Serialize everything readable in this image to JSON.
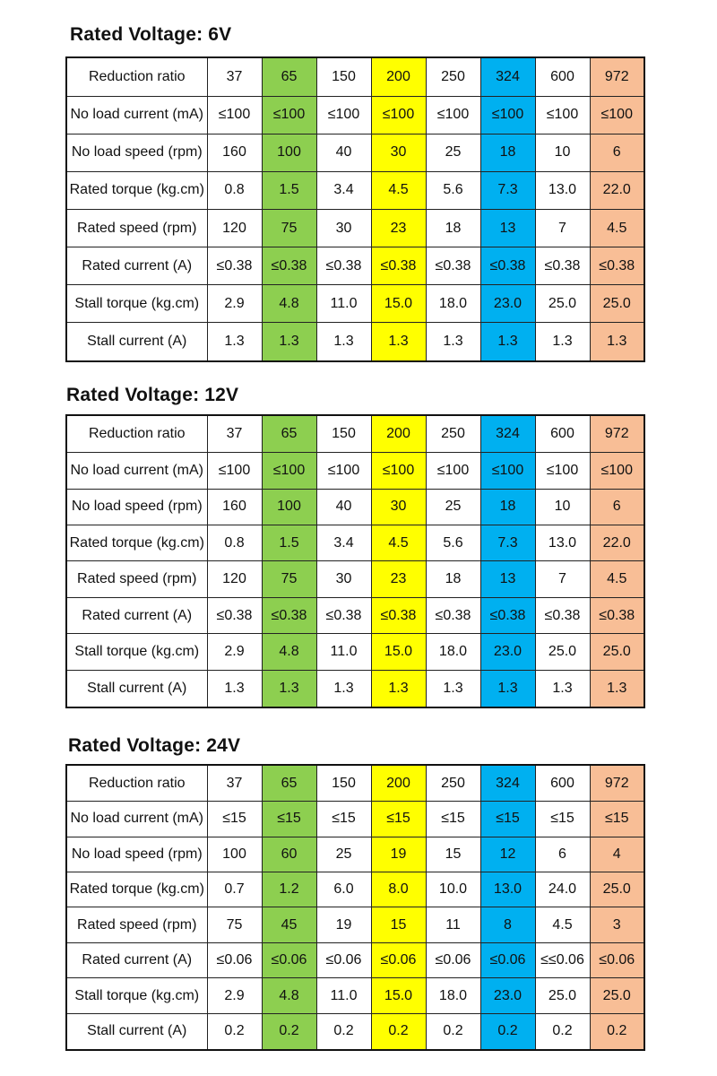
{
  "colors": {
    "green": "#8dcf50",
    "yellow": "#ffff00",
    "blue": "#00b0f0",
    "orange": "#f8be96"
  },
  "sections": [
    {
      "title": "Rated Voltage: 6V",
      "rows": [
        {
          "label": "Reduction ratio",
          "values": [
            "37",
            "65",
            "150",
            "200",
            "250",
            "324",
            "600",
            "972"
          ]
        },
        {
          "label": "No load current (mA)",
          "values": [
            "≤100",
            "≤100",
            "≤100",
            "≤100",
            "≤100",
            "≤100",
            "≤100",
            "≤100"
          ]
        },
        {
          "label": "No load speed (rpm)",
          "values": [
            "160",
            "100",
            "40",
            "30",
            "25",
            "18",
            "10",
            "6"
          ]
        },
        {
          "label": "Rated torque (kg.cm)",
          "values": [
            "0.8",
            "1.5",
            "3.4",
            "4.5",
            "5.6",
            "7.3",
            "13.0",
            "22.0"
          ]
        },
        {
          "label": "Rated speed (rpm)",
          "values": [
            "120",
            "75",
            "30",
            "23",
            "18",
            "13",
            "7",
            "4.5"
          ]
        },
        {
          "label": "Rated current (A)",
          "values": [
            "≤0.38",
            "≤0.38",
            "≤0.38",
            "≤0.38",
            "≤0.38",
            "≤0.38",
            "≤0.38",
            "≤0.38"
          ]
        },
        {
          "label": "Stall torque (kg.cm)",
          "values": [
            "2.9",
            "4.8",
            "11.0",
            "15.0",
            "18.0",
            "23.0",
            "25.0",
            "25.0"
          ]
        },
        {
          "label": "Stall current (A)",
          "values": [
            "1.3",
            "1.3",
            "1.3",
            "1.3",
            "1.3",
            "1.3",
            "1.3",
            "1.3"
          ]
        }
      ]
    },
    {
      "title": "Rated Voltage: 12V",
      "rows": [
        {
          "label": "Reduction ratio",
          "values": [
            "37",
            "65",
            "150",
            "200",
            "250",
            "324",
            "600",
            "972"
          ]
        },
        {
          "label": "No load current (mA)",
          "values": [
            "≤100",
            "≤100",
            "≤100",
            "≤100",
            "≤100",
            "≤100",
            "≤100",
            "≤100"
          ]
        },
        {
          "label": "No load speed (rpm)",
          "values": [
            "160",
            "100",
            "40",
            "30",
            "25",
            "18",
            "10",
            "6"
          ]
        },
        {
          "label": "Rated torque (kg.cm)",
          "values": [
            "0.8",
            "1.5",
            "3.4",
            "4.5",
            "5.6",
            "7.3",
            "13.0",
            "22.0"
          ]
        },
        {
          "label": "Rated speed (rpm)",
          "values": [
            "120",
            "75",
            "30",
            "23",
            "18",
            "13",
            "7",
            "4.5"
          ]
        },
        {
          "label": "Rated current (A)",
          "values": [
            "≤0.38",
            "≤0.38",
            "≤0.38",
            "≤0.38",
            "≤0.38",
            "≤0.38",
            "≤0.38",
            "≤0.38"
          ]
        },
        {
          "label": "Stall torque (kg.cm)",
          "values": [
            "2.9",
            "4.8",
            "11.0",
            "15.0",
            "18.0",
            "23.0",
            "25.0",
            "25.0"
          ]
        },
        {
          "label": "Stall current (A)",
          "values": [
            "1.3",
            "1.3",
            "1.3",
            "1.3",
            "1.3",
            "1.3",
            "1.3",
            "1.3"
          ]
        }
      ]
    },
    {
      "title": "Rated Voltage: 24V",
      "rows": [
        {
          "label": "Reduction ratio",
          "values": [
            "37",
            "65",
            "150",
            "200",
            "250",
            "324",
            "600",
            "972"
          ]
        },
        {
          "label": "No load current (mA)",
          "values": [
            "≤15",
            "≤15",
            "≤15",
            "≤15",
            "≤15",
            "≤15",
            "≤15",
            "≤15"
          ]
        },
        {
          "label": "No load speed (rpm)",
          "values": [
            "100",
            "60",
            "25",
            "19",
            "15",
            "12",
            "6",
            "4"
          ]
        },
        {
          "label": "Rated torque (kg.cm)",
          "values": [
            "0.7",
            "1.2",
            "6.0",
            "8.0",
            "10.0",
            "13.0",
            "24.0",
            "25.0"
          ]
        },
        {
          "label": "Rated speed (rpm)",
          "values": [
            "75",
            "45",
            "19",
            "15",
            "11",
            "8",
            "4.5",
            "3"
          ]
        },
        {
          "label": "Rated current (A)",
          "values": [
            "≤0.06",
            "≤0.06",
            "≤0.06",
            "≤0.06",
            "≤0.06",
            "≤0.06",
            "≤≤0.06",
            "≤0.06"
          ]
        },
        {
          "label": "Stall torque (kg.cm)",
          "values": [
            "2.9",
            "4.8",
            "11.0",
            "15.0",
            "18.0",
            "23.0",
            "25.0",
            "25.0"
          ]
        },
        {
          "label": "Stall current (A)",
          "values": [
            "0.2",
            "0.2",
            "0.2",
            "0.2",
            "0.2",
            "0.2",
            "0.2",
            "0.2"
          ]
        }
      ]
    }
  ]
}
